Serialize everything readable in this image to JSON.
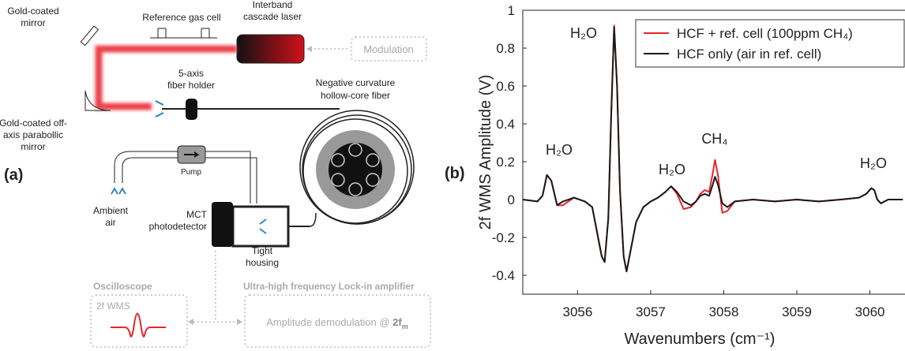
{
  "panels": {
    "a": "(a)",
    "b": "(b)"
  },
  "diagram": {
    "gold_mirror": [
      "Gold-coated",
      "mirror"
    ],
    "reference_cell": "Reference gas cell",
    "laser": [
      "Interband",
      "cascade laser"
    ],
    "modulation": "Modulation",
    "fiber_holder": [
      "5-axis",
      "fiber holder"
    ],
    "fiber": [
      "Negative curvature",
      "hollow-core fiber"
    ],
    "parabolic_mirror": [
      "Gold-coated off-",
      "axis parabollic",
      "mirror"
    ],
    "pump": "Pump",
    "ambient_air": [
      "Ambient",
      "air"
    ],
    "detector": [
      "MCT",
      "photodetector"
    ],
    "housing": [
      "Tight",
      "housing"
    ],
    "oscilloscope": "Oscilloscope",
    "scope_signal": "2f WMS",
    "lockin": "Ultra-high frequency Lock-in amplifier",
    "demodulation": {
      "text": "Amplitude demodulation @ ",
      "bold": "2f",
      "sub": "m"
    }
  },
  "chart_data": {
    "type": "line",
    "x_label": "Wavenumbers (cm⁻¹)",
    "y_label": "2f WMS Amplitude (V)",
    "annotations": [
      "H₂O",
      "H₂O",
      "H₂O",
      "CH₄",
      "H₂O"
    ],
    "x": [
      3055.25,
      3055.45,
      3055.52,
      3055.58,
      3055.64,
      3055.72,
      3055.8,
      3055.95,
      3056.1,
      3056.2,
      3056.28,
      3056.33,
      3056.37,
      3056.42,
      3056.46,
      3056.5,
      3056.54,
      3056.58,
      3056.63,
      3056.67,
      3056.72,
      3056.8,
      3056.9,
      3057.0,
      3057.1,
      3057.2,
      3057.28,
      3057.36,
      3057.45,
      3057.55,
      3057.62,
      3057.68,
      3057.74,
      3057.8,
      3057.85,
      3057.88,
      3057.92,
      3057.98,
      3058.05,
      3058.15,
      3058.4,
      3058.7,
      3059.0,
      3059.3,
      3059.6,
      3059.85,
      3059.95,
      3060.02,
      3060.06,
      3060.1,
      3060.15,
      3060.25,
      3060.45
    ],
    "series": [
      {
        "name": "HCF + ref. cell (100ppm CH₄)",
        "color": "#e8262b",
        "values": [
          0.0,
          -0.01,
          0.02,
          0.13,
          0.1,
          -0.03,
          -0.03,
          0.01,
          -0.01,
          -0.04,
          -0.2,
          -0.3,
          -0.33,
          -0.1,
          0.45,
          0.92,
          0.6,
          0.05,
          -0.3,
          -0.38,
          -0.28,
          -0.12,
          -0.04,
          -0.01,
          0.01,
          0.04,
          0.07,
          0.03,
          -0.05,
          -0.04,
          -0.01,
          0.03,
          0.05,
          0.04,
          0.14,
          0.21,
          0.13,
          -0.07,
          -0.06,
          -0.01,
          0.0,
          -0.01,
          0.0,
          -0.01,
          0.0,
          0.01,
          0.03,
          0.06,
          0.05,
          0.0,
          -0.02,
          0.0,
          0.0
        ]
      },
      {
        "name": "HCF only (air in ref. cell)",
        "color": "#1a1a1a",
        "values": [
          0.0,
          -0.01,
          0.02,
          0.13,
          0.1,
          -0.03,
          -0.01,
          0.01,
          -0.01,
          -0.04,
          -0.2,
          -0.3,
          -0.33,
          -0.1,
          0.45,
          0.91,
          0.6,
          0.05,
          -0.3,
          -0.38,
          -0.28,
          -0.12,
          -0.04,
          -0.01,
          0.01,
          0.04,
          0.07,
          0.04,
          -0.01,
          -0.03,
          -0.01,
          0.02,
          0.03,
          0.02,
          0.08,
          0.12,
          0.08,
          -0.02,
          -0.04,
          -0.01,
          0.0,
          -0.01,
          0.0,
          -0.01,
          0.0,
          0.01,
          0.03,
          0.06,
          0.05,
          0.0,
          -0.02,
          0.0,
          0.0
        ]
      }
    ],
    "xlim": [
      3055.25,
      3060.48
    ],
    "xticks": [
      3056,
      3057,
      3058,
      3059,
      3060
    ],
    "ylim": [
      -0.5,
      1
    ],
    "yticks": [
      1,
      0.8,
      0.6,
      0.4,
      0.2,
      0,
      -0.2,
      -0.4
    ],
    "grid": false,
    "legend": "upper right"
  }
}
